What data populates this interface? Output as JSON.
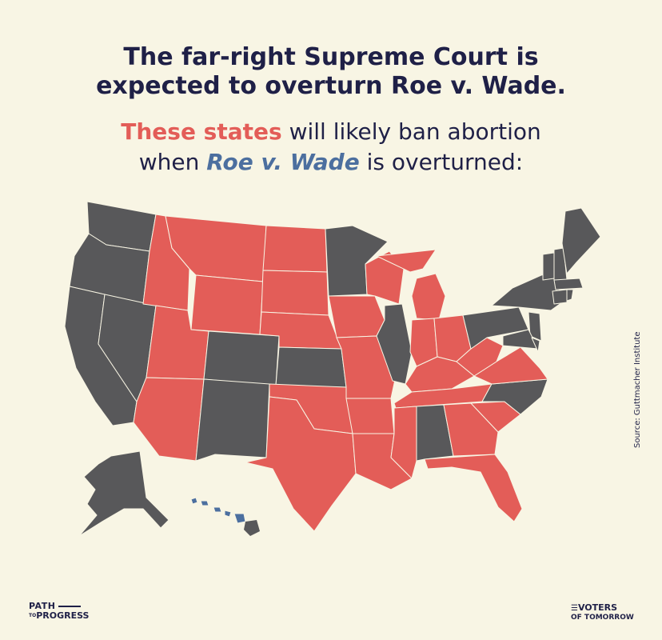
{
  "headline": {
    "line1": "The far-right Supreme Court is",
    "line2": "expected to overturn Roe v. Wade."
  },
  "subhead": {
    "highlight_red": "These states",
    "text_after_red": " will likely ban abortion",
    "line2_start": "when ",
    "highlight_blue": "Roe v. Wade",
    "line2_end": " is overturned:"
  },
  "source": "Source: Guttmacher Institute",
  "logos": {
    "left_line1": "PATH",
    "left_to": "TO",
    "left_line2": "PROGRESS",
    "right_line1": "VOTERS",
    "right_line2": "OF TOMORROW"
  },
  "colors": {
    "ban_states": "#e35d58",
    "other_states": "#58585a",
    "hawaii": "#4c6f9f",
    "background": "#f8f5e4",
    "text": "#1f2047"
  },
  "states_likely_ban": [
    "ID",
    "MT",
    "WY",
    "UT",
    "AZ",
    "ND",
    "SD",
    "NE",
    "OK",
    "TX",
    "MO",
    "AR",
    "LA",
    "IA",
    "WI",
    "MI",
    "IN",
    "OH",
    "KY",
    "TN",
    "MS",
    "GA",
    "SC",
    "FL",
    "WV",
    "VA"
  ]
}
